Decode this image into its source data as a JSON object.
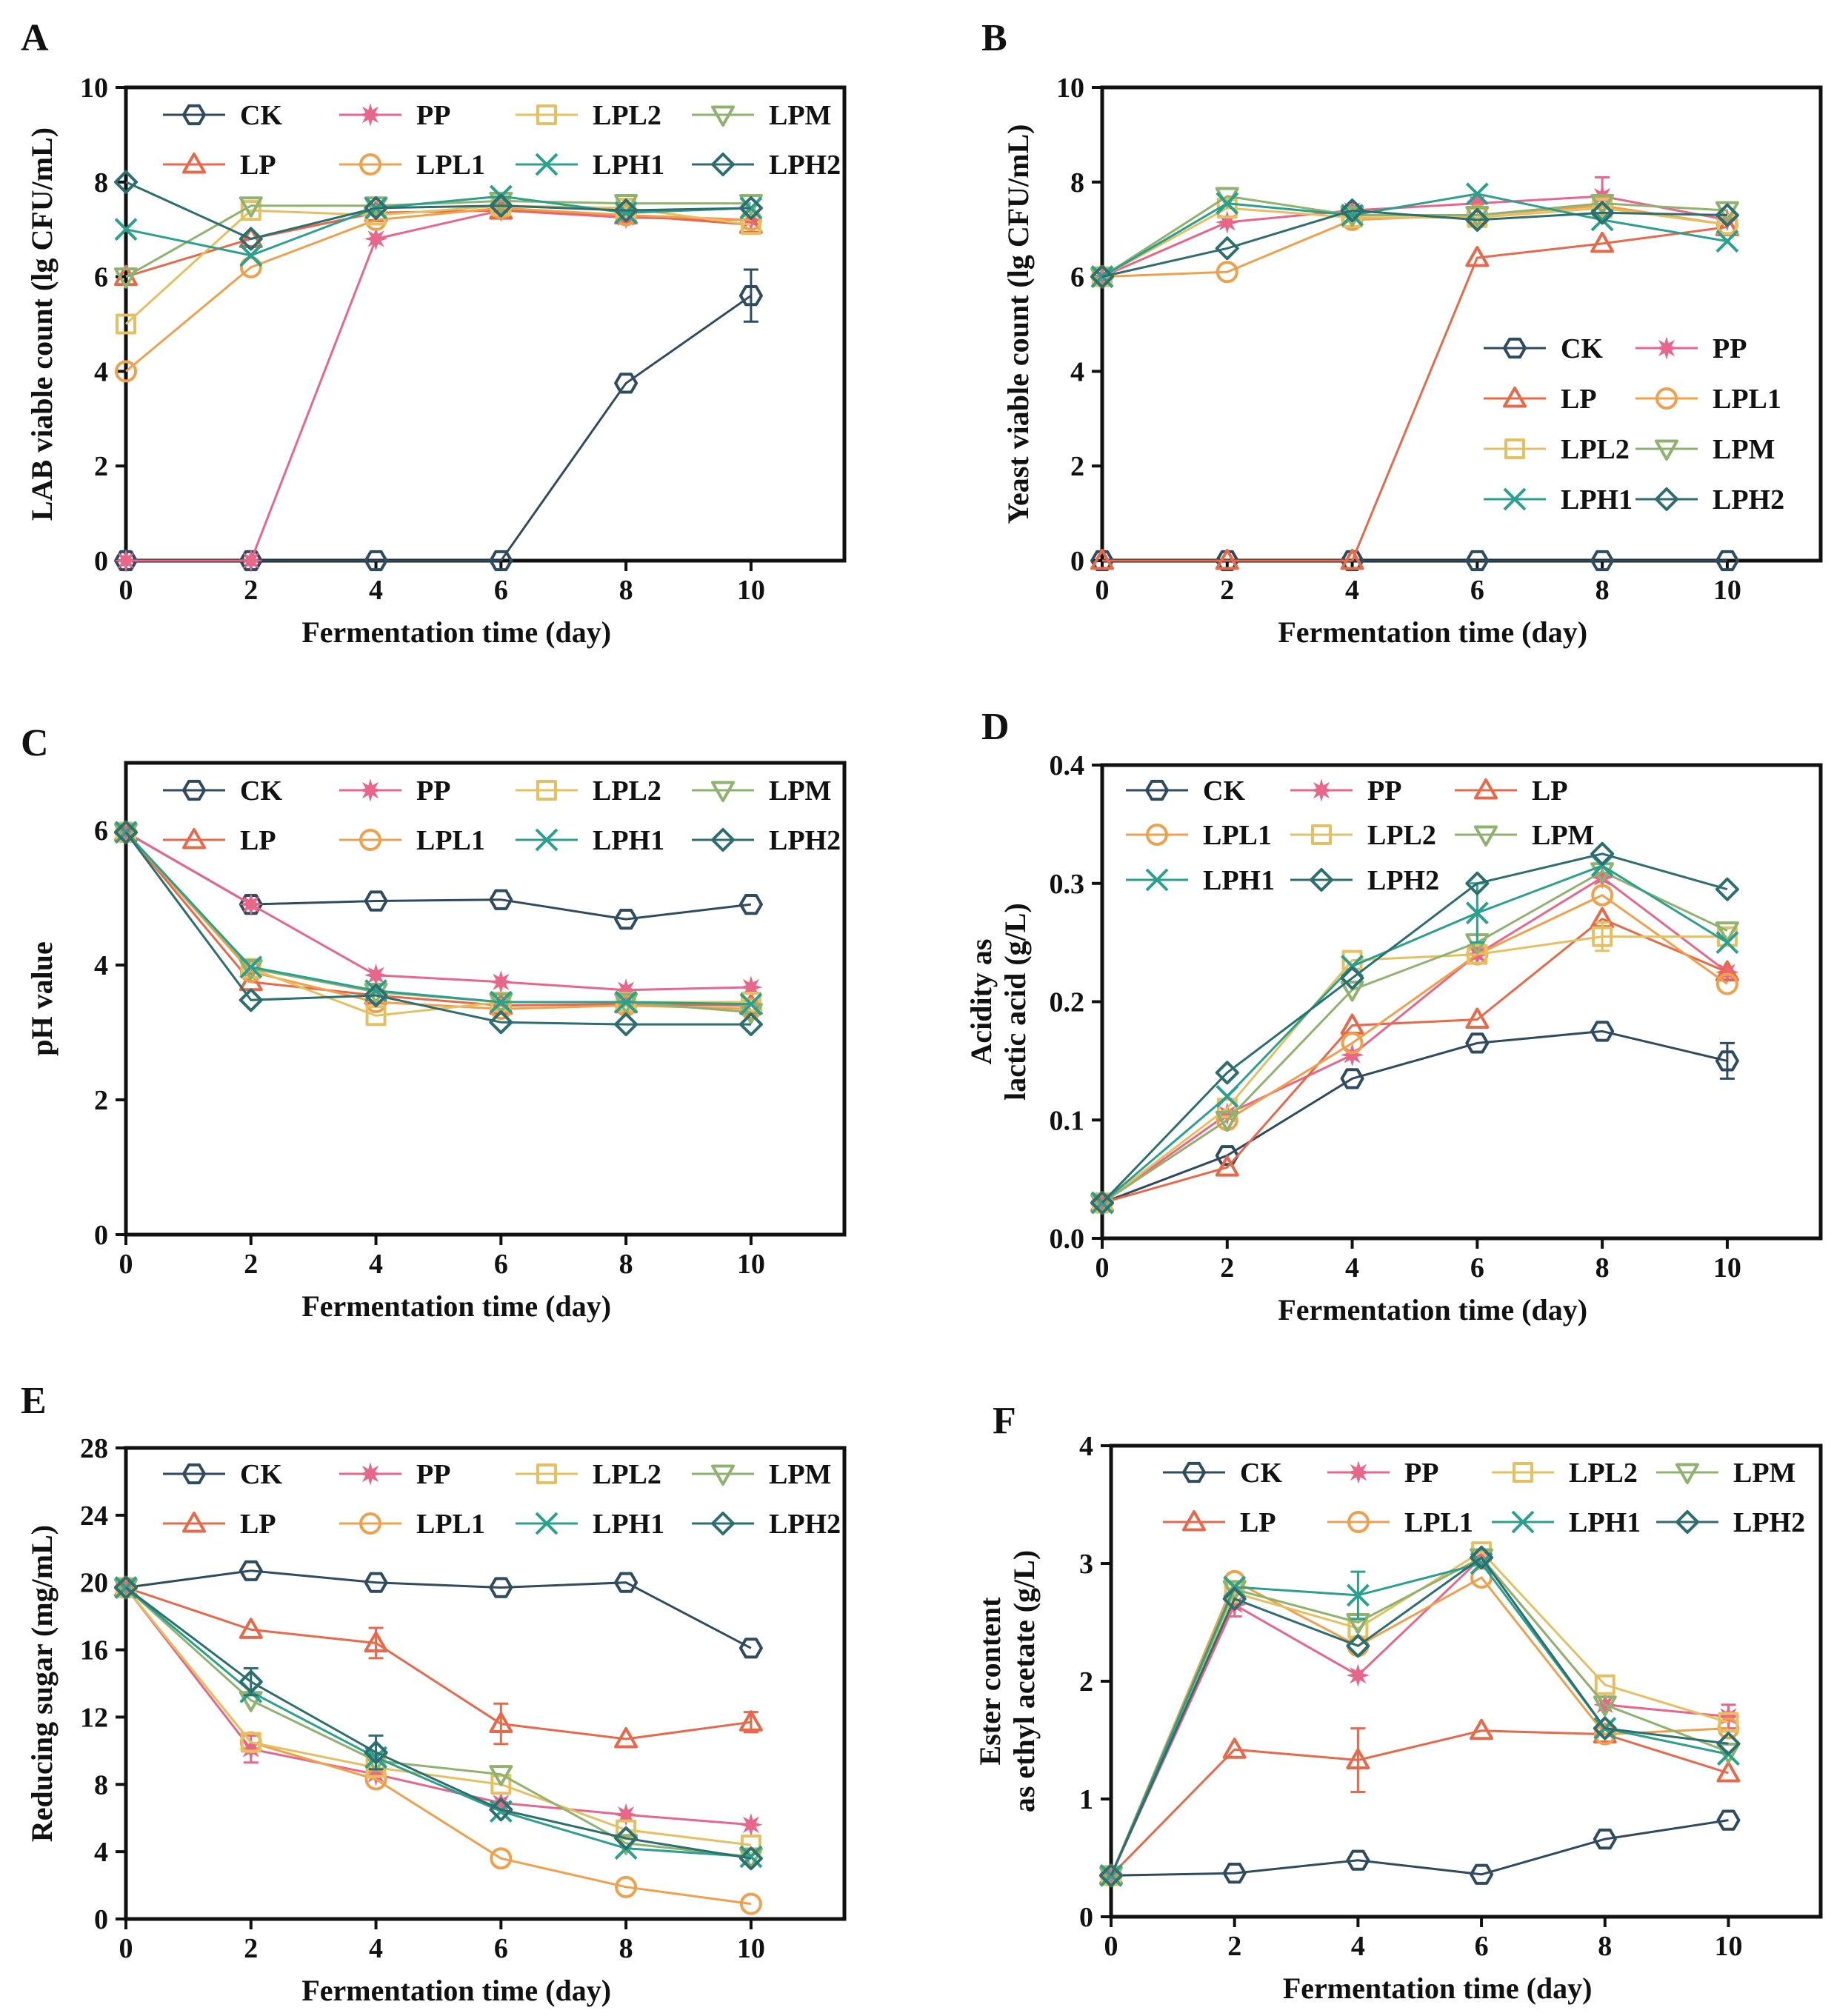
{
  "colors": {
    "CK": "#2f4b5e",
    "PP": "#e8668a",
    "LP": "#e8694a",
    "LPL1": "#f0a04b",
    "LPL2": "#e6c060",
    "LPM": "#8fb26e",
    "LPH1": "#2aa08f",
    "LPH2": "#2d6e6e"
  },
  "series_names": [
    "CK",
    "PP",
    "LP",
    "LPL1",
    "LPL2",
    "LPM",
    "LPH1",
    "LPH2"
  ],
  "chart_data": [
    {
      "panel": "A",
      "type": "line",
      "xlabel": "Fermentation time (day)",
      "ylabel": [
        "LAB viable count (lg CFU/mL)"
      ],
      "x": [
        0,
        2,
        4,
        6,
        8,
        10
      ],
      "ylim": [
        0,
        10
      ],
      "yticks": [
        "0",
        "2",
        "4",
        "6",
        "8",
        "10"
      ],
      "legend_order": [
        "CK",
        "PP",
        "LPL2",
        "LPM",
        "LP",
        "LPL1",
        "LPH1",
        "LPH2"
      ],
      "legend_cols": 4,
      "legend_position": "top",
      "series": [
        {
          "name": "CK",
          "values": [
            0,
            0,
            0,
            0,
            3.75,
            5.6
          ],
          "err": [
            0,
            0,
            0,
            0,
            0,
            0.55
          ]
        },
        {
          "name": "PP",
          "values": [
            0,
            0,
            6.8,
            7.4,
            7.25,
            7.2
          ]
        },
        {
          "name": "LP",
          "values": [
            6.0,
            6.8,
            7.35,
            7.4,
            7.3,
            7.1
          ]
        },
        {
          "name": "LPL1",
          "values": [
            4.0,
            6.2,
            7.2,
            7.45,
            7.3,
            7.2
          ]
        },
        {
          "name": "LPL2",
          "values": [
            5.0,
            7.4,
            7.3,
            7.5,
            7.45,
            7.1
          ]
        },
        {
          "name": "LPM",
          "values": [
            6.0,
            7.5,
            7.5,
            7.6,
            7.55,
            7.55
          ]
        },
        {
          "name": "LPH1",
          "values": [
            7.0,
            6.45,
            7.45,
            7.7,
            7.35,
            7.45
          ]
        },
        {
          "name": "LPH2",
          "values": [
            8.0,
            6.8,
            7.45,
            7.5,
            7.4,
            7.45
          ]
        }
      ]
    },
    {
      "panel": "B",
      "type": "line",
      "xlabel": "Fermentation time (day)",
      "ylabel": [
        "Yeast viable  count (lg CFU/mL)"
      ],
      "x": [
        0,
        2,
        4,
        6,
        8,
        10
      ],
      "ylim": [
        0,
        10
      ],
      "yticks": [
        "0",
        "2",
        "4",
        "6",
        "8",
        "10"
      ],
      "legend_order": [
        "CK",
        "PP",
        "LP",
        "LPL1",
        "LPL2",
        "LPM",
        "LPH1",
        "LPH2"
      ],
      "legend_cols": 2,
      "legend_position": "lower-right",
      "series": [
        {
          "name": "CK",
          "values": [
            0,
            0,
            0,
            0,
            0,
            0
          ]
        },
        {
          "name": "PP",
          "values": [
            6.0,
            7.15,
            7.4,
            7.55,
            7.7,
            7.2
          ],
          "err": [
            0,
            0,
            0,
            0,
            0.4,
            0
          ]
        },
        {
          "name": "LP",
          "values": [
            0,
            0,
            0,
            6.4,
            6.7,
            7.05
          ]
        },
        {
          "name": "LPL1",
          "values": [
            6.0,
            6.1,
            7.2,
            7.3,
            7.5,
            7.1
          ]
        },
        {
          "name": "LPL2",
          "values": [
            6.0,
            7.45,
            7.25,
            7.25,
            7.45,
            7.1
          ]
        },
        {
          "name": "LPM",
          "values": [
            6.0,
            7.7,
            7.3,
            7.3,
            7.55,
            7.4
          ]
        },
        {
          "name": "LPH1",
          "values": [
            6.0,
            7.55,
            7.3,
            7.75,
            7.2,
            6.75
          ]
        },
        {
          "name": "LPH2",
          "values": [
            6.0,
            6.6,
            7.4,
            7.2,
            7.35,
            7.3
          ]
        }
      ]
    },
    {
      "panel": "C",
      "type": "line",
      "xlabel": "Fermentation time (day)",
      "ylabel": [
        "pH value"
      ],
      "x": [
        0,
        2,
        4,
        6,
        8,
        10
      ],
      "ylim": [
        0,
        7
      ],
      "yticks": [
        "0",
        "2",
        "4",
        "6"
      ],
      "legend_order": [
        "CK",
        "PP",
        "LPL2",
        "LPM",
        "LP",
        "LPL1",
        "LPH1",
        "LPH2"
      ],
      "legend_cols": 4,
      "legend_position": "top",
      "series": [
        {
          "name": "CK",
          "values": [
            5.97,
            4.9,
            4.95,
            4.97,
            4.68,
            4.9
          ]
        },
        {
          "name": "PP",
          "values": [
            5.97,
            4.9,
            3.85,
            3.75,
            3.63,
            3.67
          ]
        },
        {
          "name": "LP",
          "values": [
            5.97,
            3.75,
            3.55,
            3.4,
            3.42,
            3.4
          ]
        },
        {
          "name": "LPL1",
          "values": [
            5.97,
            3.9,
            3.45,
            3.35,
            3.4,
            3.35
          ]
        },
        {
          "name": "LPL2",
          "values": [
            5.97,
            3.95,
            3.25,
            3.45,
            3.45,
            3.45
          ]
        },
        {
          "name": "LPM",
          "values": [
            5.97,
            3.95,
            3.6,
            3.45,
            3.45,
            3.3
          ]
        },
        {
          "name": "LPH1",
          "values": [
            5.97,
            3.97,
            3.62,
            3.45,
            3.45,
            3.42
          ]
        },
        {
          "name": "LPH2",
          "values": [
            5.97,
            3.48,
            3.55,
            3.15,
            3.12,
            3.12
          ]
        }
      ]
    },
    {
      "panel": "D",
      "type": "line",
      "xlabel": "Fermentation time (day)",
      "ylabel": [
        "Acidity as",
        "lactic acid (g/L)"
      ],
      "x": [
        0,
        2,
        4,
        6,
        8,
        10
      ],
      "ylim": [
        0,
        0.4
      ],
      "yticks": [
        "0.0",
        "0.1",
        "0.2",
        "0.3",
        "0.4"
      ],
      "legend_order": [
        "CK",
        "PP",
        "LP",
        "LPL1",
        "LPL2",
        "LPM",
        "LPH1",
        "LPH2"
      ],
      "legend_cols": 3,
      "legend_position": "top-left",
      "series": [
        {
          "name": "CK",
          "values": [
            0.03,
            0.07,
            0.135,
            0.165,
            0.175,
            0.15
          ],
          "err": [
            0,
            0,
            0,
            0,
            0,
            0.015
          ]
        },
        {
          "name": "PP",
          "values": [
            0.03,
            0.105,
            0.155,
            0.24,
            0.305,
            0.225
          ]
        },
        {
          "name": "LP",
          "values": [
            0.03,
            0.06,
            0.18,
            0.185,
            0.27,
            0.225
          ]
        },
        {
          "name": "LPL1",
          "values": [
            0.03,
            0.1,
            0.165,
            0.24,
            0.29,
            0.215
          ]
        },
        {
          "name": "LPL2",
          "values": [
            0.03,
            0.11,
            0.235,
            0.24,
            0.255,
            0.255
          ],
          "err": [
            0,
            0,
            0,
            0,
            0.012,
            0
          ]
        },
        {
          "name": "LPM",
          "values": [
            0.03,
            0.1,
            0.21,
            0.25,
            0.31,
            0.26
          ]
        },
        {
          "name": "LPH1",
          "values": [
            0.03,
            0.12,
            0.23,
            0.275,
            0.315,
            0.25
          ],
          "err": [
            0,
            0,
            0,
            0.025,
            0,
            0
          ]
        },
        {
          "name": "LPH2",
          "values": [
            0.03,
            0.14,
            0.22,
            0.3,
            0.325,
            0.295
          ]
        }
      ]
    },
    {
      "panel": "E",
      "type": "line",
      "xlabel": "Fermentation time (day)",
      "ylabel": [
        "Reducing sugar (mg/mL)"
      ],
      "x": [
        0,
        2,
        4,
        6,
        8,
        10
      ],
      "ylim": [
        0,
        28
      ],
      "yticks": [
        "0",
        "4",
        "8",
        "12",
        "16",
        "20",
        "24",
        "28"
      ],
      "legend_order": [
        "CK",
        "PP",
        "LPL2",
        "LPM",
        "LP",
        "LPL1",
        "LPH1",
        "LPH2"
      ],
      "legend_cols": 4,
      "legend_position": "top",
      "series": [
        {
          "name": "CK",
          "values": [
            19.7,
            20.7,
            20.0,
            19.7,
            20.0,
            16.1
          ]
        },
        {
          "name": "PP",
          "values": [
            19.7,
            10.1,
            8.6,
            6.9,
            6.2,
            5.6
          ],
          "err": [
            0,
            0.8,
            0,
            0,
            0,
            0
          ]
        },
        {
          "name": "LP",
          "values": [
            19.7,
            17.2,
            16.4,
            11.6,
            10.7,
            11.7
          ],
          "err": [
            0,
            0,
            0.9,
            1.2,
            0,
            0.6
          ]
        },
        {
          "name": "LPL1",
          "values": [
            19.7,
            10.5,
            8.3,
            3.6,
            1.9,
            0.9
          ]
        },
        {
          "name": "LPL2",
          "values": [
            19.7,
            10.5,
            9.0,
            8.0,
            5.3,
            4.4
          ]
        },
        {
          "name": "LPM",
          "values": [
            19.7,
            13.0,
            9.4,
            8.6,
            4.5,
            3.7
          ]
        },
        {
          "name": "LPH1",
          "values": [
            19.7,
            13.5,
            9.6,
            6.4,
            4.2,
            3.7
          ]
        },
        {
          "name": "LPH2",
          "values": [
            19.7,
            14.1,
            9.9,
            6.5,
            4.8,
            3.6
          ],
          "err": [
            0,
            0.8,
            1.0,
            0,
            0,
            0
          ]
        }
      ]
    },
    {
      "panel": "F",
      "type": "line",
      "xlabel": "Fermentation time (day)",
      "ylabel": [
        "Ester content",
        "as ethyl acetate (g/L)"
      ],
      "x": [
        0,
        2,
        4,
        6,
        8,
        10
      ],
      "ylim": [
        0,
        4
      ],
      "yticks": [
        "0",
        "1",
        "2",
        "3",
        "4"
      ],
      "legend_order": [
        "CK",
        "PP",
        "LPL2",
        "LPM",
        "LP",
        "LPL1",
        "LPH1",
        "LPH2"
      ],
      "legend_cols": 4,
      "legend_position": "top",
      "series": [
        {
          "name": "CK",
          "values": [
            0.35,
            0.37,
            0.48,
            0.36,
            0.66,
            0.82
          ]
        },
        {
          "name": "PP",
          "values": [
            0.35,
            2.65,
            2.05,
            3.05,
            1.8,
            1.7
          ],
          "err": [
            0,
            0.1,
            0,
            0,
            0,
            0.1
          ]
        },
        {
          "name": "LP",
          "values": [
            0.35,
            1.42,
            1.33,
            1.58,
            1.55,
            1.22
          ],
          "err": [
            0,
            0,
            0.27,
            0,
            0,
            0
          ]
        },
        {
          "name": "LPL1",
          "values": [
            0.35,
            2.85,
            2.3,
            2.88,
            1.55,
            1.6
          ]
        },
        {
          "name": "LPL2",
          "values": [
            0.35,
            2.75,
            2.45,
            3.1,
            1.97,
            1.65
          ]
        },
        {
          "name": "LPM",
          "values": [
            0.35,
            2.78,
            2.5,
            3.05,
            1.8,
            1.4
          ]
        },
        {
          "name": "LPH1",
          "values": [
            0.35,
            2.8,
            2.73,
            3.0,
            1.6,
            1.38
          ],
          "err": [
            0,
            0,
            0.2,
            0,
            0,
            0
          ]
        },
        {
          "name": "LPH2",
          "values": [
            0.35,
            2.7,
            2.3,
            3.05,
            1.6,
            1.47
          ]
        }
      ]
    }
  ]
}
